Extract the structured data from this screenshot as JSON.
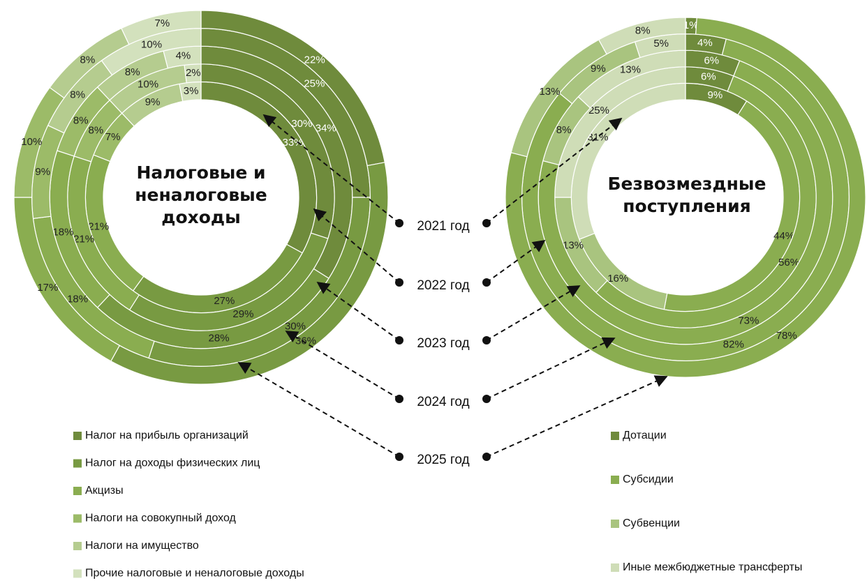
{
  "ring_labels": [
    "2021 год",
    "2022 год",
    "2023 год",
    "2024 год",
    "2025 год"
  ],
  "chart_data": [
    {
      "type": "donut",
      "title": "Налоговые и неналоговые доходы",
      "categories": [
        "Налог на прибыль организаций",
        "Налог на доходы физических лиц",
        "Акцизы",
        "Налоги на совокупный доход",
        "Налоги на имущество",
        "Прочие налоговые и неналоговые доходы"
      ],
      "colors": [
        "#6f8b3c",
        "#789a42",
        "#8aad50",
        "#9cbb68",
        "#b5cc8f",
        "#d3e1bd"
      ],
      "series": [
        {
          "values": [
            33,
            27,
            21,
            7,
            9,
            3
          ],
          "value_labels": [
            "33%",
            "27%",
            "21%",
            "7%",
            "9%",
            "3%"
          ]
        },
        {
          "values": [
            30,
            29,
            21,
            8,
            10,
            2
          ],
          "value_labels": [
            "30%",
            "29%",
            "21%",
            "8%",
            "10%",
            "2%"
          ]
        },
        {
          "values": [
            34,
            28,
            18,
            8,
            8,
            4
          ],
          "value_labels": [
            "34%",
            "28%",
            "18%",
            "8%",
            "8%",
            "4%"
          ]
        },
        {
          "values": [
            25,
            30,
            18,
            9,
            8,
            10
          ],
          "value_labels": [
            "25%",
            "30%",
            "18%",
            "9%",
            "8%",
            "10%"
          ]
        },
        {
          "values": [
            22,
            36,
            17,
            10,
            8,
            7
          ],
          "value_labels": [
            "22%",
            "36%",
            "17%",
            "10%",
            "8%",
            "7%"
          ]
        }
      ]
    },
    {
      "type": "donut",
      "title": "Безвозмездные поступления",
      "categories": [
        "Дотации",
        "Субсидии",
        "Субвенции",
        "Иные межбюджетные трансферты"
      ],
      "colors": [
        "#6f8b3c",
        "#8aad50",
        "#a9c47f",
        "#cfddb7"
      ],
      "series": [
        {
          "values": [
            9,
            44,
            16,
            31
          ],
          "value_labels": [
            "9%",
            "44%",
            "16%",
            "31%"
          ]
        },
        {
          "values": [
            6,
            56,
            13,
            25
          ],
          "value_labels": [
            "6%",
            "56%",
            "13%",
            "25%"
          ]
        },
        {
          "values": [
            6,
            73,
            8,
            13
          ],
          "value_labels": [
            "6%",
            "73%",
            "8%",
            "13%"
          ]
        },
        {
          "values": [
            4,
            82,
            9,
            5
          ],
          "value_labels": [
            "4%",
            "82%",
            "9%",
            "5%"
          ]
        },
        {
          "values": [
            1,
            78,
            13,
            8
          ],
          "value_labels": [
            "1%",
            "78%",
            "13%",
            "8%"
          ]
        }
      ]
    }
  ]
}
